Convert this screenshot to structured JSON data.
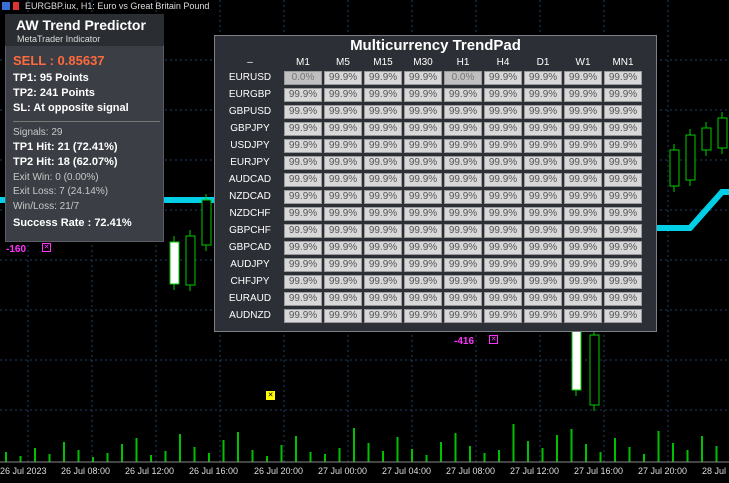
{
  "chart_title": "EURGBP.iux, H1:  Euro vs Great Britain Pound",
  "aw": {
    "title": "AW Trend Predictor",
    "subtitle": "MetaTrader Indicator",
    "sell": "SELL : 0.85637",
    "tp1": "TP1: 95 Points",
    "tp2": "TP2: 241 Points",
    "sl": "SL:  At opposite signal",
    "signals": "Signals: 29",
    "tp1_hit": "TP1 Hit: 21 (72.41%)",
    "tp2_hit": "TP2 Hit: 18 (62.07%)",
    "exit_win": "Exit Win: 0 (0.00%)",
    "exit_loss": "Exit Loss: 7 (24.14%)",
    "win_loss": "Win/Loss: 21/7",
    "success": "Success Rate : 72.41%"
  },
  "trendpad": {
    "title": "Multicurrency TrendPad",
    "corner": "–",
    "timeframes": [
      "M1",
      "M5",
      "M15",
      "M30",
      "H1",
      "H4",
      "D1",
      "W1",
      "MN1"
    ],
    "rows": [
      {
        "pair": "EURUSD",
        "cells": [
          "0.0%",
          "99.9%",
          "99.9%",
          "99.9%",
          "0.0%",
          "99.9%",
          "99.9%",
          "99.9%",
          "99.9%"
        ]
      },
      {
        "pair": "EURGBP",
        "cells": [
          "99.9%",
          "99.9%",
          "99.9%",
          "99.9%",
          "99.9%",
          "99.9%",
          "99.9%",
          "99.9%",
          "99.9%"
        ]
      },
      {
        "pair": "GBPUSD",
        "cells": [
          "99.9%",
          "99.9%",
          "99.9%",
          "99.9%",
          "99.9%",
          "99.9%",
          "99.9%",
          "99.9%",
          "99.9%"
        ]
      },
      {
        "pair": "GBPJPY",
        "cells": [
          "99.9%",
          "99.9%",
          "99.9%",
          "99.9%",
          "99.9%",
          "99.9%",
          "99.9%",
          "99.9%",
          "99.9%"
        ]
      },
      {
        "pair": "USDJPY",
        "cells": [
          "99.9%",
          "99.9%",
          "99.9%",
          "99.9%",
          "99.9%",
          "99.9%",
          "99.9%",
          "99.9%",
          "99.9%"
        ]
      },
      {
        "pair": "EURJPY",
        "cells": [
          "99.9%",
          "99.9%",
          "99.9%",
          "99.9%",
          "99.9%",
          "99.9%",
          "99.9%",
          "99.9%",
          "99.9%"
        ]
      },
      {
        "pair": "AUDCAD",
        "cells": [
          "99.9%",
          "99.9%",
          "99.9%",
          "99.9%",
          "99.9%",
          "99.9%",
          "99.9%",
          "99.9%",
          "99.9%"
        ]
      },
      {
        "pair": "NZDCAD",
        "cells": [
          "99.9%",
          "99.9%",
          "99.9%",
          "99.9%",
          "99.9%",
          "99.9%",
          "99.9%",
          "99.9%",
          "99.9%"
        ]
      },
      {
        "pair": "NZDCHF",
        "cells": [
          "99.9%",
          "99.9%",
          "99.9%",
          "99.9%",
          "99.9%",
          "99.9%",
          "99.9%",
          "99.9%",
          "99.9%"
        ]
      },
      {
        "pair": "GBPCHF",
        "cells": [
          "99.9%",
          "99.9%",
          "99.9%",
          "99.9%",
          "99.9%",
          "99.9%",
          "99.9%",
          "99.9%",
          "99.9%"
        ]
      },
      {
        "pair": "GBPCAD",
        "cells": [
          "99.9%",
          "99.9%",
          "99.9%",
          "99.9%",
          "99.9%",
          "99.9%",
          "99.9%",
          "99.9%",
          "99.9%"
        ]
      },
      {
        "pair": "AUDJPY",
        "cells": [
          "99.9%",
          "99.9%",
          "99.9%",
          "99.9%",
          "99.9%",
          "99.9%",
          "99.9%",
          "99.9%",
          "99.9%"
        ]
      },
      {
        "pair": "CHFJPY",
        "cells": [
          "99.9%",
          "99.9%",
          "99.9%",
          "99.9%",
          "99.9%",
          "99.9%",
          "99.9%",
          "99.9%",
          "99.9%"
        ]
      },
      {
        "pair": "EURAUD",
        "cells": [
          "99.9%",
          "99.9%",
          "99.9%",
          "99.9%",
          "99.9%",
          "99.9%",
          "99.9%",
          "99.9%",
          "99.9%"
        ]
      },
      {
        "pair": "AUDNZD",
        "cells": [
          "99.9%",
          "99.9%",
          "99.9%",
          "99.9%",
          "99.9%",
          "99.9%",
          "99.9%",
          "99.9%",
          "99.9%"
        ]
      }
    ]
  },
  "markers": {
    "left_value": "-160",
    "right_value": "-416"
  },
  "time_axis": [
    "26 Jul 2023",
    "26 Jul 08:00",
    "26 Jul 12:00",
    "26 Jul 16:00",
    "26 Jul 20:00",
    "27 Jul 00:00",
    "27 Jul 04:00",
    "27 Jul 08:00",
    "27 Jul 12:00",
    "27 Jul 16:00",
    "27 Jul 20:00",
    "28 Jul"
  ],
  "colors": {
    "background": "#000000",
    "bull_candle": "#00cc00",
    "trend_line": "#00e5ff",
    "volume": "#00c000",
    "signal_magenta": "#ff33ff",
    "sell_text": "#ff6a3d"
  }
}
